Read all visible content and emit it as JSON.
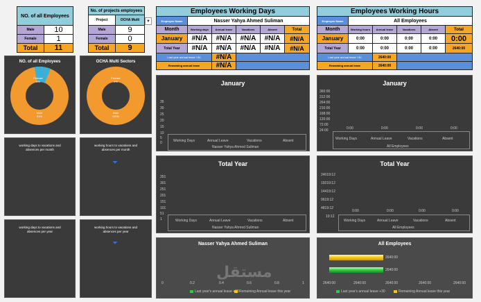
{
  "summary_table": {
    "title": "NO. of all Employees",
    "rows": [
      {
        "label": "Male",
        "value": "10"
      },
      {
        "label": "Female",
        "value": "1"
      },
      {
        "label": "Total",
        "value": "11"
      }
    ]
  },
  "project_table": {
    "title": "No. of projects employees",
    "project_label": "Project",
    "project_value": "OCHA Multi",
    "rows": [
      {
        "label": "Male",
        "value": "9"
      },
      {
        "label": "Female",
        "value": "0"
      },
      {
        "label": "Total",
        "value": "9"
      }
    ]
  },
  "working_days": {
    "title": "Employees Working Days",
    "employee_label": "Employee Name",
    "employee_name": "Nasser Yahya Ahmed Suliman",
    "col_headers": [
      "Month",
      "Working days",
      "Annual leave",
      "Vacations",
      "Absent",
      "Total"
    ],
    "rows": [
      {
        "label": "January",
        "values": [
          "#N/A",
          "#N/A",
          "#N/A",
          "#N/A"
        ]
      },
      {
        "label": "Total Year",
        "values": [
          "#N/A",
          "#N/A",
          "#N/A",
          "#N/A"
        ]
      }
    ],
    "extra_rows": [
      {
        "label": "Last year annual leave +30",
        "value": "#N/A"
      },
      {
        "label": "Remaining annual leave",
        "value": "#N/A"
      }
    ]
  },
  "working_hours": {
    "title": "Employees Working Hours",
    "employee_label": "Employee Name",
    "employee_name": "All Employees",
    "col_headers": [
      "Month",
      "Working hours",
      "Annual leave",
      "Vacations",
      "Absent",
      "Total"
    ],
    "rows": [
      {
        "label": "January",
        "values": [
          "0:00",
          "0:00",
          "0:00",
          "0:00",
          "0:00"
        ]
      },
      {
        "label": "Total Year",
        "values": [
          "0:00",
          "0:00",
          "0:00",
          "0:00",
          "2640:00"
        ]
      }
    ],
    "extra_rows": [
      {
        "label": "Last year annual leave +30",
        "value": "2640:00"
      },
      {
        "label": "Remaining annual leave",
        "value": "2640:00"
      }
    ]
  },
  "donut_left": {
    "title": "NO. of all Employees",
    "female_label": "Female",
    "female_pct": "9%",
    "male_label": "Male",
    "male_pct": "91%",
    "female_fraction": 0.09
  },
  "donut_right": {
    "title": "OCHA Multi Sectors",
    "female_label": "Female",
    "female_pct": "0%",
    "male_label": "Male",
    "male_pct": "100%",
    "female_fraction": 0.0
  },
  "mini_panels": [
    {
      "title": "working days to vacations and absences per month"
    },
    {
      "title": "working hours to vacations and absences per month"
    },
    {
      "title": "working days to vacations and absences per year"
    },
    {
      "title": "working hours to vacations and absences per year"
    }
  ],
  "chart_data": [
    {
      "type": "bar",
      "title": "January",
      "categories": [
        "Working Days",
        "Annual Leave",
        "Vacations",
        "Absent"
      ],
      "xlabel": "Nasser Yahya Ahmed Suliman",
      "yticks": [
        "35",
        "30",
        "25",
        "20",
        "15",
        "10",
        "5",
        "0"
      ],
      "ylim": [
        0,
        35
      ],
      "values": [
        0,
        0,
        0,
        0
      ]
    },
    {
      "type": "bar",
      "title": "January",
      "categories": [
        "Working Days",
        "Annual Leave",
        "Vacations",
        "Absent"
      ],
      "xlabel": "All Employees",
      "yticks": [
        "360:00",
        "312:00",
        "264:00",
        "216:00",
        "168:00",
        "120:00",
        "72:00",
        "24:00"
      ],
      "data_labels": [
        "0:00",
        "0:00",
        "0:00",
        "0:00"
      ],
      "values": [
        0,
        0,
        0,
        0
      ]
    },
    {
      "type": "bar",
      "title": "Total Year",
      "categories": [
        "Working Days",
        "Annual Leave",
        "Vacations",
        "Absent"
      ],
      "xlabel": "Nasser Yahya Ahmed Suliman",
      "yticks": [
        "351",
        "301",
        "251",
        "201",
        "151",
        "101",
        "51",
        "1"
      ],
      "values": [
        0,
        0,
        0,
        0
      ]
    },
    {
      "type": "bar",
      "title": "Total Year",
      "categories": [
        "Working Days",
        "Annual Leave",
        "Vacations",
        "Absent"
      ],
      "xlabel": "All Employees",
      "yticks": [
        "24019:12",
        "19219:12",
        "14419:12",
        "9619:12",
        "4819:12",
        "19:12"
      ],
      "data_labels": [
        "0:00",
        "0:00",
        "0:00",
        "0:00"
      ],
      "values": [
        0,
        0,
        0,
        0
      ]
    },
    {
      "type": "bar",
      "title": "Nasser Yahya Ahmed Suliman",
      "xticks": [
        "0",
        "0.2",
        "0.4",
        "0.6",
        "0.8",
        "1"
      ],
      "legend": [
        "Last year's annual leave +30",
        "Remaining Annual leave this year"
      ],
      "values": [
        0,
        0
      ]
    },
    {
      "type": "bar",
      "title": "All Employees",
      "xticks": [
        "2640:00",
        "2640:00",
        "2640:00",
        "2640:00",
        "2640:00"
      ],
      "bar_labels": [
        "2640:00",
        "2640:00"
      ],
      "legend": [
        "Last year's annual leave +30",
        "Remaining Annual leave this year"
      ],
      "values": [
        1,
        1
      ]
    }
  ],
  "colors": {
    "header": "#92cddc",
    "lavender": "#b4a7d6",
    "orange": "#f5a623",
    "blue": "#5b8fd9",
    "panel": "#3a3a3a",
    "green": "#2ecc40",
    "yellow": "#f5c518"
  },
  "watermark": "مستقل"
}
